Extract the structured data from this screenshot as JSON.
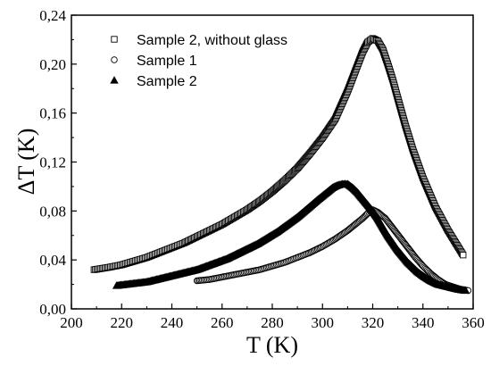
{
  "chart_data": {
    "type": "scatter",
    "title": "",
    "xlabel": "T (K)",
    "ylabel": "ΔT (K)",
    "xlim": [
      200,
      360
    ],
    "ylim": [
      0,
      0.24
    ],
    "x_ticks": [
      200,
      220,
      240,
      260,
      280,
      300,
      320,
      340,
      360
    ],
    "x_tick_labels": [
      "200",
      "220",
      "240",
      "260",
      "280",
      "300",
      "320",
      "340",
      "360"
    ],
    "y_ticks": [
      0,
      0.04,
      0.08,
      0.12,
      0.16,
      0.2,
      0.24
    ],
    "y_tick_labels": [
      "0,00",
      "0,04",
      "0,08",
      "0,12",
      "0,16",
      "0,20",
      "0,24"
    ],
    "grid": false,
    "legend_position": "top-left",
    "series": [
      {
        "name": "Sample 2, without glass",
        "marker": "open-square",
        "x": [
          209,
          215,
          220,
          225,
          230,
          235,
          240,
          245,
          250,
          255,
          260,
          265,
          270,
          275,
          280,
          285,
          290,
          295,
          300,
          305,
          310,
          313,
          316,
          318,
          320,
          322,
          324,
          326,
          328,
          330,
          333,
          336,
          340,
          345,
          350,
          353,
          356
        ],
        "y": [
          0.032,
          0.034,
          0.036,
          0.039,
          0.042,
          0.046,
          0.05,
          0.054,
          0.059,
          0.064,
          0.069,
          0.075,
          0.081,
          0.088,
          0.096,
          0.105,
          0.115,
          0.127,
          0.14,
          0.155,
          0.178,
          0.194,
          0.21,
          0.218,
          0.221,
          0.219,
          0.212,
          0.2,
          0.187,
          0.172,
          0.15,
          0.13,
          0.107,
          0.083,
          0.064,
          0.054,
          0.044
        ]
      },
      {
        "name": "Sample 1",
        "marker": "open-circle",
        "x": [
          250,
          255,
          260,
          265,
          270,
          275,
          280,
          285,
          290,
          295,
          300,
          305,
          310,
          313,
          316,
          318,
          320,
          322,
          325,
          328,
          331,
          334,
          337,
          340,
          343,
          346,
          349,
          352,
          355,
          358
        ],
        "y": [
          0.023,
          0.024,
          0.026,
          0.028,
          0.03,
          0.032,
          0.035,
          0.038,
          0.042,
          0.046,
          0.051,
          0.057,
          0.064,
          0.069,
          0.074,
          0.078,
          0.081,
          0.079,
          0.074,
          0.066,
          0.058,
          0.05,
          0.042,
          0.035,
          0.029,
          0.024,
          0.02,
          0.018,
          0.016,
          0.015
        ]
      },
      {
        "name": "Sample 2",
        "marker": "filled-triangle",
        "x": [
          218,
          222,
          226,
          230,
          234,
          238,
          242,
          246,
          250,
          254,
          258,
          262,
          266,
          270,
          274,
          278,
          282,
          286,
          290,
          294,
          298,
          301,
          304,
          306,
          308,
          310,
          312,
          314,
          316,
          318,
          320,
          322,
          324,
          326,
          328,
          330,
          332,
          334,
          336,
          338,
          340,
          343,
          346,
          350,
          354,
          357
        ],
        "y": [
          0.019,
          0.02,
          0.021,
          0.022,
          0.024,
          0.026,
          0.028,
          0.03,
          0.032,
          0.035,
          0.038,
          0.041,
          0.045,
          0.049,
          0.053,
          0.058,
          0.063,
          0.069,
          0.075,
          0.082,
          0.089,
          0.094,
          0.099,
          0.101,
          0.102,
          0.102,
          0.099,
          0.095,
          0.09,
          0.085,
          0.08,
          0.074,
          0.067,
          0.06,
          0.054,
          0.048,
          0.043,
          0.038,
          0.034,
          0.03,
          0.027,
          0.023,
          0.02,
          0.018,
          0.016,
          0.015
        ]
      }
    ]
  }
}
